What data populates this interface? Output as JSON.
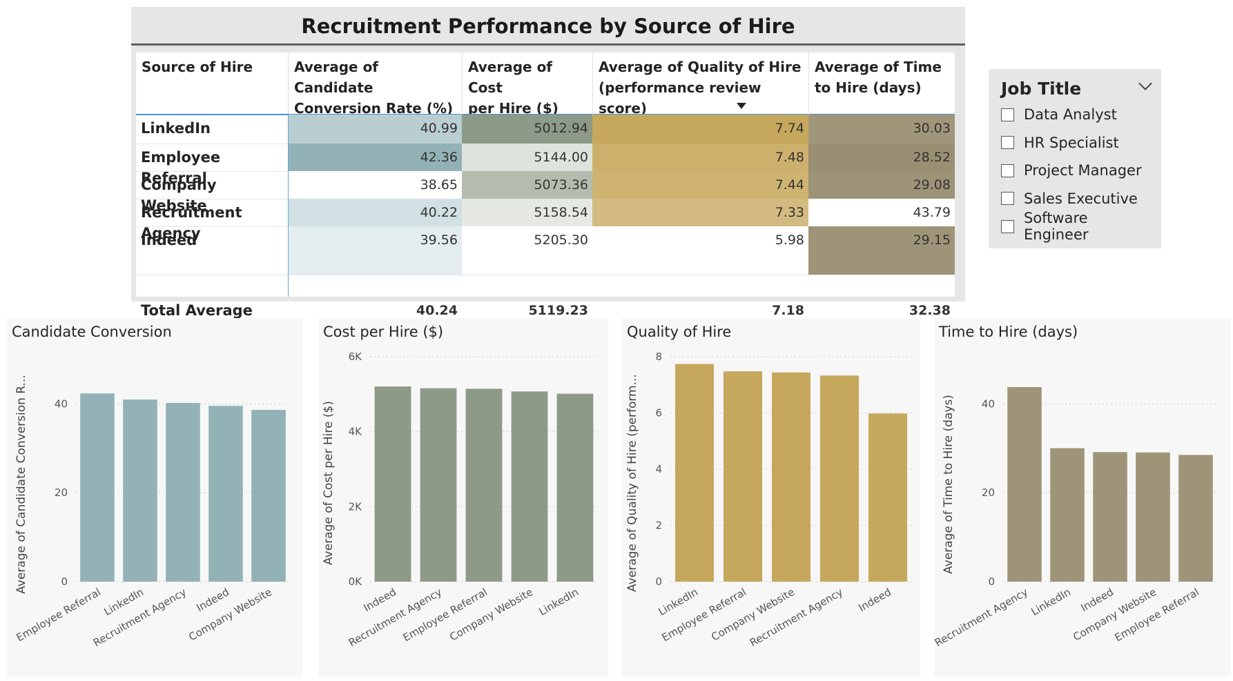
{
  "table": {
    "title": "Recruitment Performance by Source of Hire",
    "headers": [
      [
        "Source of Hire",
        ""
      ],
      [
        "Average of Candidate",
        "Conversion Rate (%)"
      ],
      [
        "Average of Cost",
        "per Hire ($)"
      ],
      [
        "Average of Quality of Hire",
        "(performance review score)"
      ],
      [
        "Average of Time",
        "to Hire (days)"
      ]
    ],
    "rows": [
      {
        "source": [
          "LinkedIn",
          ""
        ],
        "conversion": "40.99",
        "cost": "5012.94",
        "quality": "7.74",
        "time": "30.03"
      },
      {
        "source": [
          "Employee Referral",
          ""
        ],
        "conversion": "42.36",
        "cost": "5144.00",
        "quality": "7.48",
        "time": "28.52"
      },
      {
        "source": [
          "Company Website",
          ""
        ],
        "conversion": "38.65",
        "cost": "5073.36",
        "quality": "7.44",
        "time": "29.08"
      },
      {
        "source": [
          "Recruitment",
          "Agency"
        ],
        "conversion": "40.22",
        "cost": "5158.54",
        "quality": "7.33",
        "time": "43.79"
      },
      {
        "source": [
          "Indeed",
          ""
        ],
        "conversion": "39.56",
        "cost": "5205.30",
        "quality": "5.98",
        "time": "29.15"
      }
    ],
    "total": {
      "source": "Total Average",
      "conversion": "40.24",
      "cost": "5119.23",
      "quality": "7.18",
      "time": "32.38"
    },
    "colors": {
      "conversion": [
        "#b9ced1",
        "#93b2b6",
        "#ffffff",
        "#d1e0e2",
        "#e3ecee"
      ],
      "cost": [
        "#8d9a87",
        "#dfe3dd",
        "#b4bcb0",
        "#e6e8e4",
        "#ffffff"
      ],
      "quality": [
        "#c6a85c",
        "#cdb06c",
        "#cfb371",
        "#d3ba80",
        "#ffffff"
      ],
      "time": [
        "#a09679",
        "#998f72",
        "#9d9376",
        "#ffffff",
        "#9e9477"
      ]
    }
  },
  "slicer": {
    "title": "Job Title",
    "items": [
      "Data Analyst",
      "HR Specialist",
      "Project Manager",
      "Sales Executive",
      "Software Engineer"
    ]
  },
  "chart_data": [
    {
      "type": "bar",
      "title": "Candidate Conversion",
      "ylabel": "Average of Candidate Conversion R...",
      "categories": [
        "Employee Referral",
        "LinkedIn",
        "Recruitment Agency",
        "Indeed",
        "Company Website"
      ],
      "values": [
        42.36,
        40.99,
        40.22,
        39.56,
        38.65
      ],
      "ylim": [
        0,
        50
      ],
      "yticks": [
        0,
        20,
        40
      ],
      "ytick_labels": [
        "0",
        "20",
        "40"
      ],
      "color": "#93b2b6",
      "grid": true
    },
    {
      "type": "bar",
      "title": "Cost per Hire ($)",
      "ylabel": "Average of Cost per Hire ($)",
      "categories": [
        "Indeed",
        "Recruitment Agency",
        "Employee Referral",
        "Company Website",
        "LinkedIn"
      ],
      "values": [
        5205.3,
        5158.54,
        5144.0,
        5073.36,
        5012.94
      ],
      "ylim": [
        0,
        6000
      ],
      "yticks": [
        0,
        2000,
        4000,
        6000
      ],
      "ytick_labels": [
        "0K",
        "2K",
        "4K",
        "6K"
      ],
      "color": "#8d9a87",
      "grid": true
    },
    {
      "type": "bar",
      "title": "Quality of Hire",
      "ylabel": "Average of Quality of Hire (perform...",
      "categories": [
        "LinkedIn",
        "Employee Referral",
        "Company Website",
        "Recruitment Agency",
        "Indeed"
      ],
      "values": [
        7.74,
        7.48,
        7.44,
        7.33,
        5.98
      ],
      "ylim": [
        0,
        8
      ],
      "yticks": [
        0,
        2,
        4,
        6,
        8
      ],
      "ytick_labels": [
        "0",
        "2",
        "4",
        "6",
        "8"
      ],
      "color": "#c6a85c",
      "grid": true
    },
    {
      "type": "bar",
      "title": "Time to Hire (days)",
      "ylabel": "Average of Time to Hire (days)",
      "categories": [
        "Recruitment Agency",
        "LinkedIn",
        "Indeed",
        "Company Website",
        "Employee Referral"
      ],
      "values": [
        43.79,
        30.03,
        29.15,
        29.08,
        28.52
      ],
      "ylim": [
        0,
        50
      ],
      "yticks": [
        0,
        20,
        40
      ],
      "ytick_labels": [
        "0",
        "20",
        "40"
      ],
      "color": "#9e9477",
      "grid": true
    }
  ]
}
